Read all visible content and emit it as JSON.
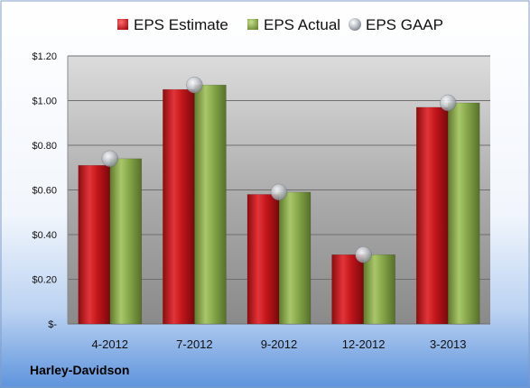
{
  "chart_data": {
    "type": "bar",
    "categories": [
      "4-2012",
      "7-2012",
      "9-2012",
      "12-2012",
      "3-2013"
    ],
    "series": [
      {
        "name": "EPS Estimate",
        "values": [
          0.71,
          1.05,
          0.58,
          0.31,
          0.97
        ],
        "color": "#c2161b",
        "kind": "bar"
      },
      {
        "name": "EPS Actual",
        "values": [
          0.74,
          1.07,
          0.59,
          0.31,
          0.99
        ],
        "color": "#86a84a",
        "kind": "bar"
      },
      {
        "name": "EPS GAAP",
        "values": [
          0.74,
          1.07,
          0.59,
          0.31,
          0.99
        ],
        "color": "#9aa0a8",
        "kind": "marker"
      }
    ],
    "ylim": [
      0,
      1.2
    ],
    "yticks": [
      {
        "value": 0,
        "label": "$-"
      },
      {
        "value": 0.2,
        "label": "$0.20"
      },
      {
        "value": 0.4,
        "label": "$0.40"
      },
      {
        "value": 0.6,
        "label": "$0.60"
      },
      {
        "value": 0.8,
        "label": "$0.80"
      },
      {
        "value": 1.0,
        "label": "$1.00"
      },
      {
        "value": 1.2,
        "label": "$1.20"
      }
    ],
    "grid": true,
    "legend_position": "top"
  },
  "footer": {
    "label": "Harley-Davidson"
  }
}
